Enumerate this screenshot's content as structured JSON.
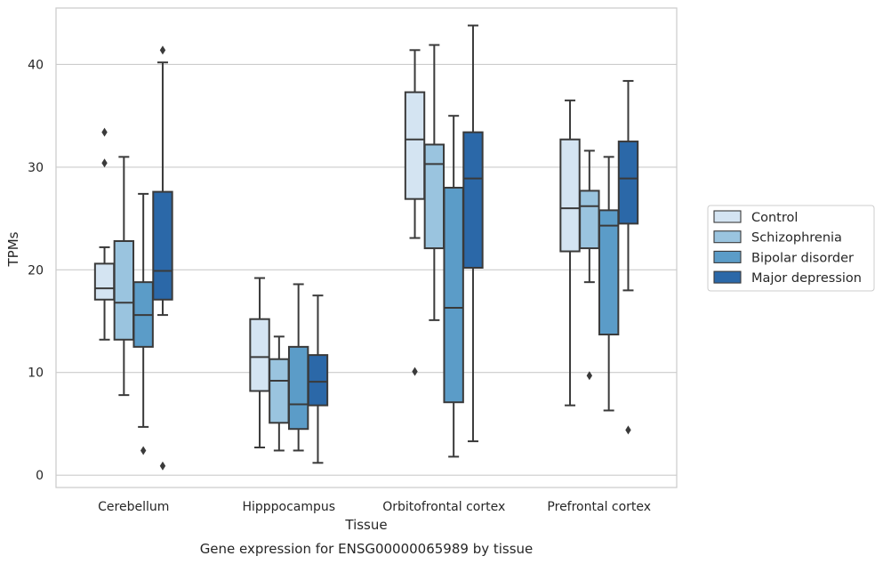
{
  "caption": "Gene expression for ENSG00000065989 by tissue",
  "chart_data": {
    "type": "box",
    "xlabel": "Tissue",
    "ylabel": "TPMs",
    "ylim": [
      -1.2,
      45.5
    ],
    "yticks": [
      0,
      10,
      20,
      30,
      40
    ],
    "grid": "horizontal",
    "legend_position": "right",
    "categories": [
      "Cerebellum",
      "Hipppocampus",
      "Orbitofrontal cortex",
      "Prefrontal cortex"
    ],
    "series": [
      {
        "name": "Control",
        "color": "#d4e4f2",
        "boxes": [
          {
            "whisker_low": 13.2,
            "q1": 17.1,
            "median": 18.2,
            "q3": 20.6,
            "whisker_high": 22.2,
            "outliers": [
              30.4,
              33.4
            ]
          },
          {
            "whisker_low": 2.7,
            "q1": 8.2,
            "median": 11.5,
            "q3": 15.2,
            "whisker_high": 19.2,
            "outliers": []
          },
          {
            "whisker_low": 23.1,
            "q1": 26.9,
            "median": 32.7,
            "q3": 37.3,
            "whisker_high": 41.4,
            "outliers": [
              10.1
            ]
          },
          {
            "whisker_low": 6.8,
            "q1": 21.8,
            "median": 26.0,
            "q3": 32.7,
            "whisker_high": 36.5,
            "outliers": []
          }
        ]
      },
      {
        "name": "Schizophrenia",
        "color": "#9ac4df",
        "boxes": [
          {
            "whisker_low": 7.8,
            "q1": 13.2,
            "median": 16.8,
            "q3": 22.8,
            "whisker_high": 31.0,
            "outliers": []
          },
          {
            "whisker_low": 2.4,
            "q1": 5.1,
            "median": 9.2,
            "q3": 11.3,
            "whisker_high": 13.5,
            "outliers": []
          },
          {
            "whisker_low": 15.1,
            "q1": 22.1,
            "median": 30.3,
            "q3": 32.2,
            "whisker_high": 41.9,
            "outliers": []
          },
          {
            "whisker_low": 18.8,
            "q1": 22.1,
            "median": 26.2,
            "q3": 27.7,
            "whisker_high": 31.6,
            "outliers": [
              9.7
            ]
          }
        ]
      },
      {
        "name": "Bipolar disorder",
        "color": "#5b9cc8",
        "boxes": [
          {
            "whisker_low": 4.7,
            "q1": 12.5,
            "median": 15.6,
            "q3": 18.8,
            "whisker_high": 27.4,
            "outliers": [
              2.4
            ]
          },
          {
            "whisker_low": 2.4,
            "q1": 4.5,
            "median": 6.9,
            "q3": 12.5,
            "whisker_high": 18.6,
            "outliers": []
          },
          {
            "whisker_low": 1.8,
            "q1": 7.1,
            "median": 16.3,
            "q3": 28.0,
            "whisker_high": 35.0,
            "outliers": []
          },
          {
            "whisker_low": 6.3,
            "q1": 13.7,
            "median": 24.3,
            "q3": 25.8,
            "whisker_high": 31.0,
            "outliers": []
          }
        ]
      },
      {
        "name": "Major depression",
        "color": "#2b68a8",
        "boxes": [
          {
            "whisker_low": 15.6,
            "q1": 17.1,
            "median": 19.9,
            "q3": 27.6,
            "whisker_high": 40.2,
            "outliers": [
              0.9,
              41.4
            ]
          },
          {
            "whisker_low": 1.2,
            "q1": 6.8,
            "median": 9.1,
            "q3": 11.7,
            "whisker_high": 17.5,
            "outliers": []
          },
          {
            "whisker_low": 3.3,
            "q1": 20.2,
            "median": 28.9,
            "q3": 33.4,
            "whisker_high": 43.8,
            "outliers": []
          },
          {
            "whisker_low": 18.0,
            "q1": 24.5,
            "median": 28.9,
            "q3": 32.5,
            "whisker_high": 38.4,
            "outliers": [
              4.4
            ]
          }
        ]
      }
    ]
  }
}
